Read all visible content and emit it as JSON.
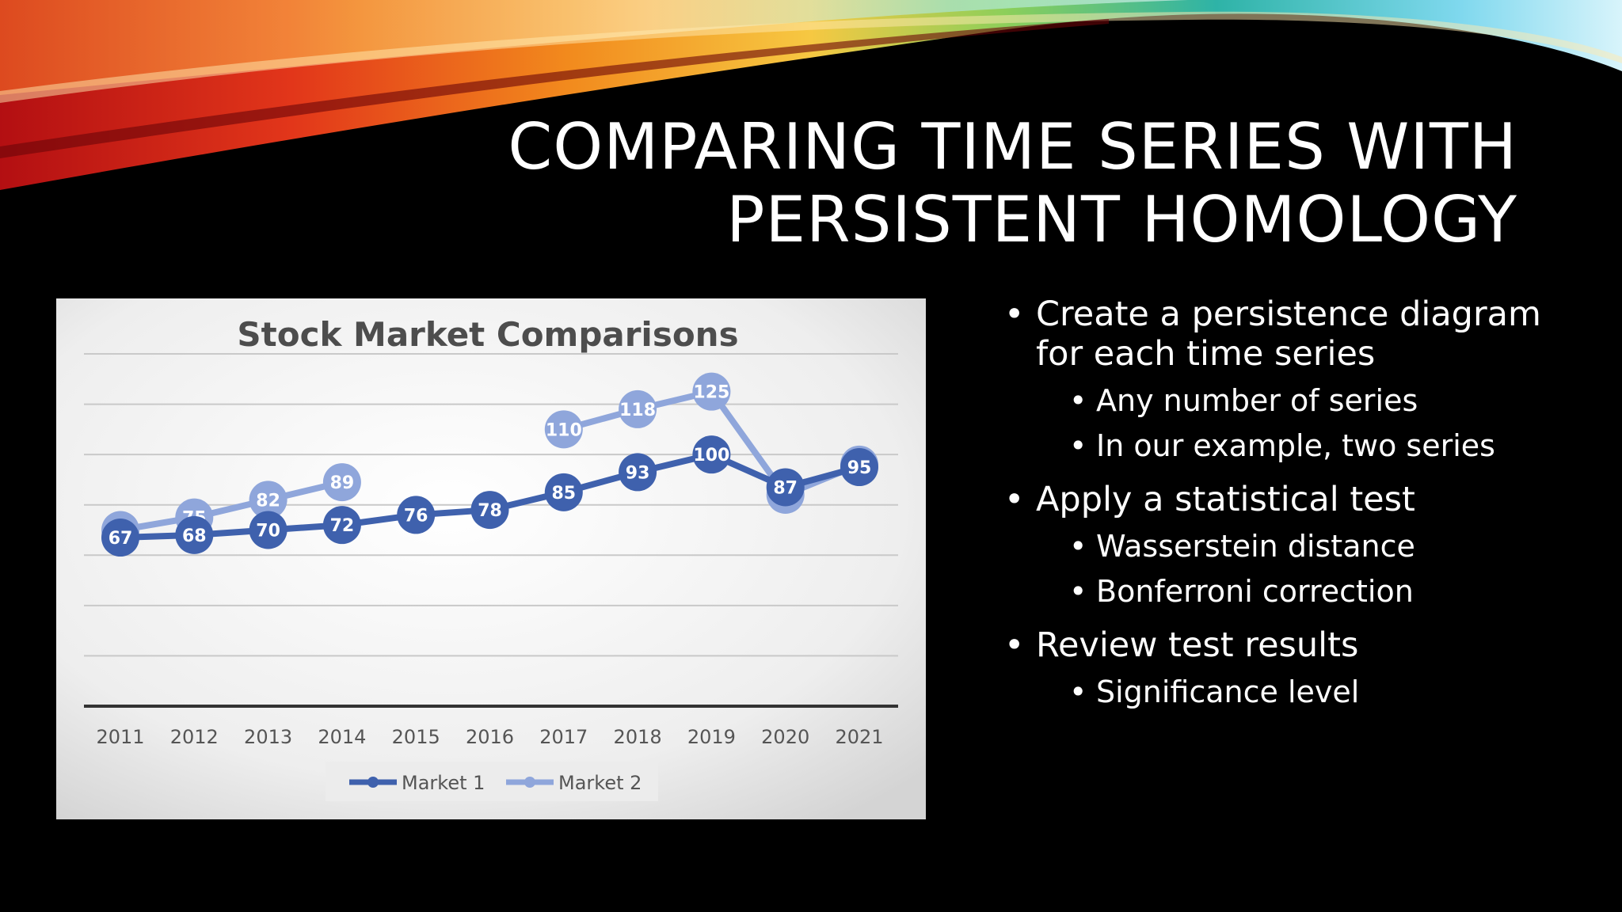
{
  "slide": {
    "title_line1": "COMPARING TIME SERIES WITH",
    "title_line2": "PERSISTENT HOMOLOGY",
    "bullets": [
      {
        "text": "Create a persistence diagram for each time series",
        "sub": [
          "Any number of series",
          "In our example, two series"
        ]
      },
      {
        "text": "Apply a statistical test",
        "sub": [
          "Wasserstein distance",
          "Bonferroni correction"
        ]
      },
      {
        "text": "Review test results",
        "sub": [
          "Significance level"
        ]
      }
    ]
  },
  "chart_data": {
    "type": "line",
    "title": "Stock Market Comparisons",
    "x": [
      "2011",
      "2012",
      "2013",
      "2014",
      "2015",
      "2016",
      "2017",
      "2018",
      "2019",
      "2020",
      "2021"
    ],
    "series": [
      {
        "name": "Market 1",
        "color": "#3F61AD",
        "values": [
          67,
          68,
          70,
          72,
          76,
          78,
          85,
          93,
          100,
          87,
          95
        ]
      },
      {
        "name": "Market 2",
        "color": "#8FA6DB",
        "values": [
          70,
          75,
          82,
          89,
          null,
          null,
          110,
          118,
          125,
          84,
          96
        ]
      }
    ],
    "ylim": [
      0,
      140
    ],
    "grid": true,
    "legend_position": "bottom"
  }
}
